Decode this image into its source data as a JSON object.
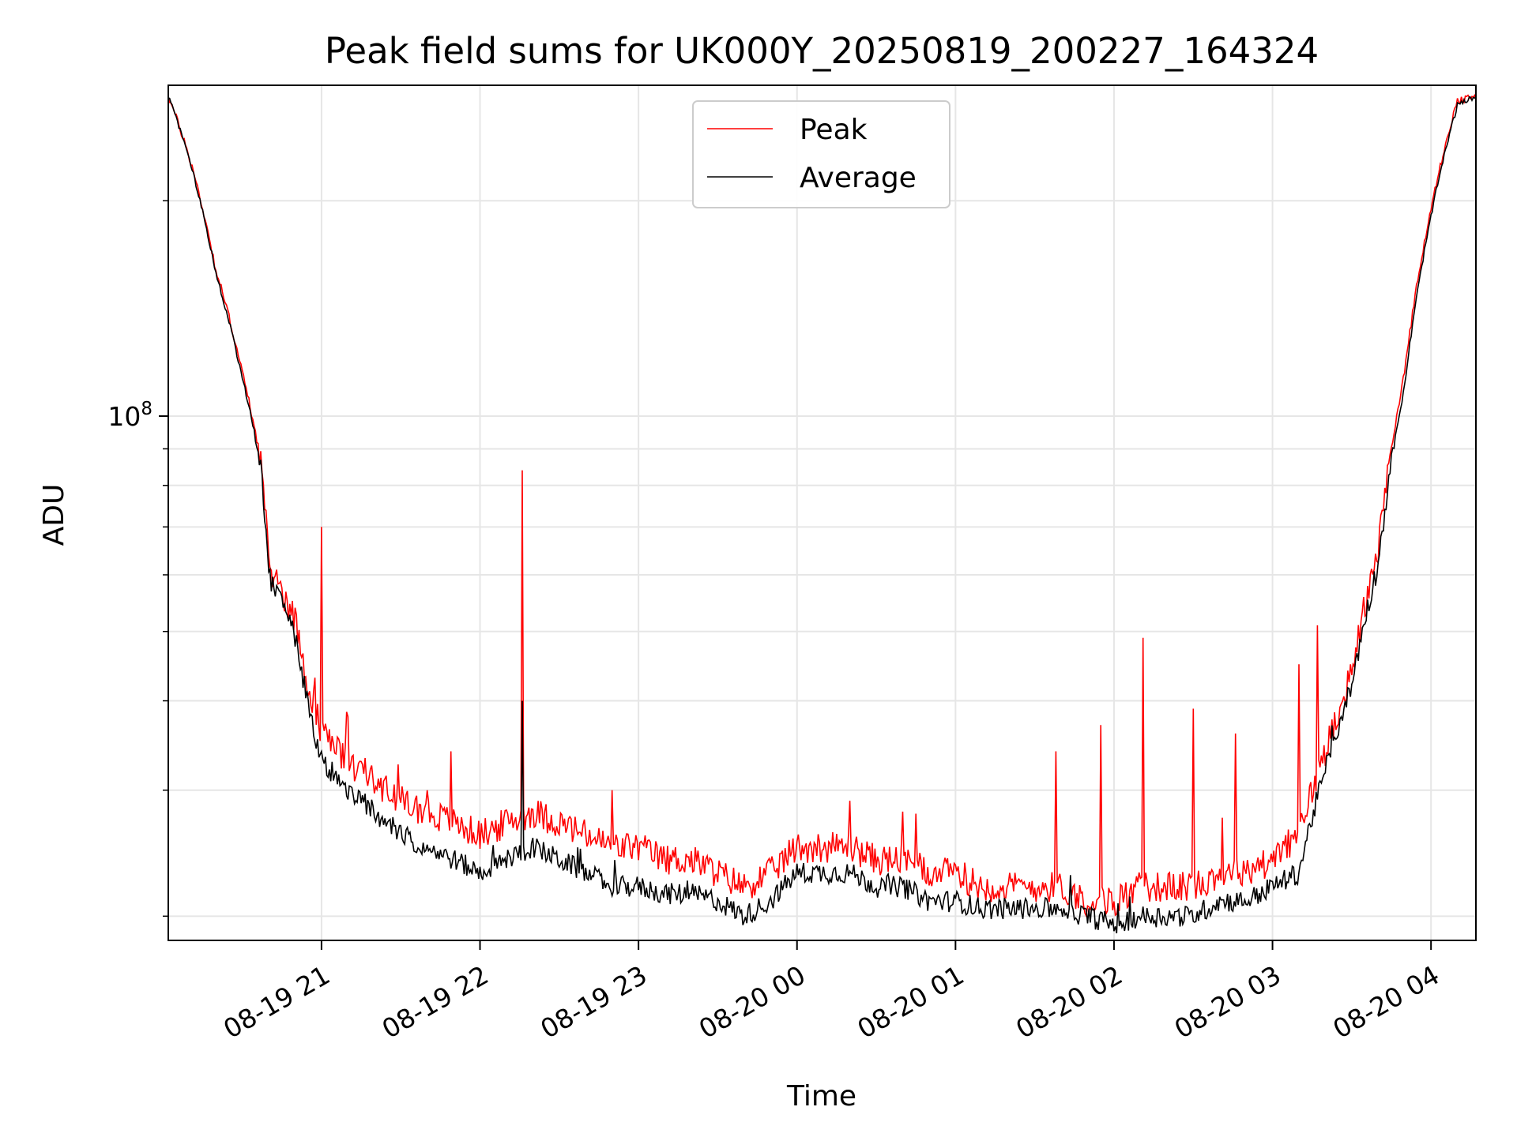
{
  "chart_data": {
    "type": "line",
    "title": "Peak field sums for UK000Y_20250819_200227_164324",
    "xlabel": "Time",
    "ylabel": "ADU",
    "yscale": "log",
    "grid": true,
    "legend_placement": "upper center",
    "xlim": [
      "2025-08-19 20:02",
      "2025-08-20 04:17"
    ],
    "ylim": [
      18500000,
      290000000
    ],
    "x_ticks": [
      "08-19 21",
      "08-19 22",
      "08-19 23",
      "08-20 00",
      "08-20 01",
      "08-20 02",
      "08-20 03",
      "08-20 04"
    ],
    "y_ticks": [
      {
        "value": 100000000,
        "base": "10",
        "exp": "8"
      }
    ],
    "x": [
      "20:02",
      "20:10",
      "20:20",
      "20:30",
      "20:37",
      "20:40",
      "20:50",
      "20:55",
      "21:00",
      "21:10",
      "21:20",
      "21:30",
      "21:40",
      "21:50",
      "22:00",
      "22:10",
      "22:20",
      "22:30",
      "22:40",
      "22:50",
      "23:00",
      "23:10",
      "23:20",
      "23:30",
      "23:40",
      "23:50",
      "00:00",
      "00:10",
      "00:20",
      "00:30",
      "00:40",
      "00:50",
      "01:00",
      "01:10",
      "01:20",
      "01:30",
      "01:40",
      "01:50",
      "02:00",
      "02:10",
      "02:20",
      "02:30",
      "02:40",
      "02:50",
      "03:00",
      "03:10",
      "03:20",
      "03:30",
      "03:40",
      "03:50",
      "04:00",
      "04:10",
      "04:17"
    ],
    "series": [
      {
        "name": "Peak",
        "color": "#ff0000",
        "values": [
          280,
          230,
          160,
          115,
          87,
          62,
          52,
          42,
          36,
          33,
          31,
          29,
          28,
          27,
          26,
          27,
          28,
          27,
          26,
          25,
          25,
          24,
          24,
          23,
          22,
          23,
          25,
          25,
          25,
          24,
          24,
          23,
          23,
          22,
          22,
          22,
          22,
          21,
          21,
          22,
          22,
          22,
          23,
          23,
          24,
          26,
          34,
          44,
          65,
          115,
          195,
          275,
          280
        ],
        "spikes": [
          {
            "x": "21:00",
            "y": 70
          },
          {
            "x": "21:10",
            "y": 38
          },
          {
            "x": "21:40",
            "y": 30
          },
          {
            "x": "21:49",
            "y": 34
          },
          {
            "x": "22:16",
            "y": 84
          },
          {
            "x": "22:50",
            "y": 30
          },
          {
            "x": "00:20",
            "y": 29
          },
          {
            "x": "00:40",
            "y": 28
          },
          {
            "x": "01:38",
            "y": 34
          },
          {
            "x": "01:55",
            "y": 37
          },
          {
            "x": "02:11",
            "y": 49
          },
          {
            "x": "02:30",
            "y": 39
          },
          {
            "x": "02:46",
            "y": 36
          },
          {
            "x": "03:10",
            "y": 45
          },
          {
            "x": "03:17",
            "y": 51
          }
        ]
      },
      {
        "name": "Average",
        "color": "#000000",
        "values": [
          280,
          228,
          158,
          113,
          85,
          60,
          49,
          39,
          33,
          30,
          28,
          26,
          25,
          24,
          23,
          24,
          25,
          24,
          23,
          22,
          22,
          21.5,
          21.5,
          21,
          20,
          21,
          23,
          23,
          23,
          22,
          22,
          21,
          21,
          20.5,
          20.5,
          20.5,
          20.5,
          20,
          19.5,
          20,
          20,
          20,
          21,
          21,
          22,
          23,
          32,
          42,
          62,
          110,
          190,
          272,
          280
        ],
        "spikes": [
          {
            "x": "22:16",
            "y": 40
          }
        ]
      }
    ]
  }
}
